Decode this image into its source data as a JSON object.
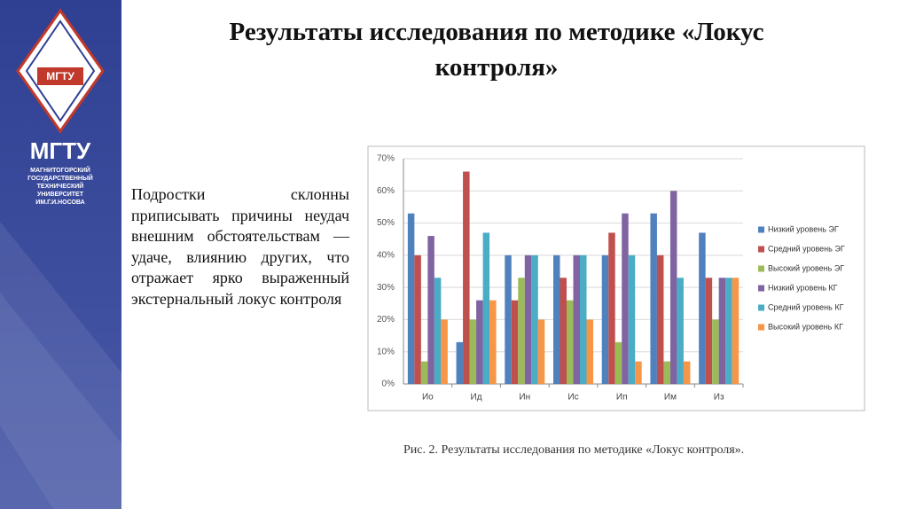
{
  "slide": {
    "title": "Результаты исследования по методике «Локус контроля»",
    "body": "Подростки склонны приписывать причины неудач внешним обстоятельствам — удаче, влиянию других, что отражает ярко выраженный экстернальный локус контроля",
    "caption": "Рис. 2. Результаты исследования по методике «Локус контроля».",
    "logo": "МГТУ",
    "university": [
      "МАГНИТОГОРСКИЙ",
      "ГОСУДАРСТВЕННЫЙ",
      "ТЕХНИЧЕСКИЙ",
      "УНИВЕРСИТЕТ",
      "ИМ.Г.И.НОСОВА"
    ]
  },
  "chart_data": {
    "type": "bar",
    "categories": [
      "Ио",
      "Ид",
      "Ин",
      "Ис",
      "Ип",
      "Им",
      "Из"
    ],
    "series": [
      {
        "name": "Низкий уровень ЭГ",
        "color": "#4f81bd",
        "values": [
          53,
          13,
          40,
          40,
          40,
          53,
          47
        ]
      },
      {
        "name": "Средний уровень ЭГ",
        "color": "#c0504d",
        "values": [
          40,
          66,
          26,
          33,
          47,
          40,
          33
        ]
      },
      {
        "name": "Высокий уровень ЭГ",
        "color": "#9bbb59",
        "values": [
          7,
          20,
          33,
          26,
          13,
          7,
          20
        ]
      },
      {
        "name": "Низкий уровень КГ",
        "color": "#8064a2",
        "values": [
          46,
          26,
          40,
          40,
          53,
          60,
          33
        ]
      },
      {
        "name": "Средний уровень КГ",
        "color": "#4bacc6",
        "values": [
          33,
          47,
          40,
          40,
          40,
          33,
          33
        ]
      },
      {
        "name": "Высокий уровень КГ",
        "color": "#f79646",
        "values": [
          20,
          26,
          20,
          20,
          7,
          7,
          33
        ]
      }
    ],
    "ylim": [
      0,
      70
    ],
    "yticks": [
      {
        "value": 0,
        "label": "0%"
      },
      {
        "value": 10,
        "label": "10%"
      },
      {
        "value": 20,
        "label": "20%"
      },
      {
        "value": 30,
        "label": "30%"
      },
      {
        "value": 40,
        "label": "40%"
      },
      {
        "value": 50,
        "label": "50%"
      },
      {
        "value": 60,
        "label": "60%"
      },
      {
        "value": 70,
        "label": "70%"
      }
    ],
    "grid": true,
    "legend": "right"
  }
}
